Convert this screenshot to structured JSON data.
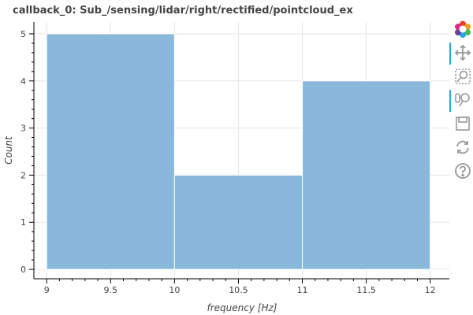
{
  "chart_data": {
    "type": "histogram",
    "title": "callback_0: Sub_/sensing/lidar/right/rectified/pointcloud_ex",
    "xlabel": "frequency [Hz]",
    "ylabel": "Count",
    "bins": [
      {
        "x0": 9,
        "x1": 10,
        "count": 5
      },
      {
        "x0": 10,
        "x1": 11,
        "count": 2
      },
      {
        "x0": 11,
        "x1": 12,
        "count": 4
      }
    ],
    "x_ticks": [
      "9",
      "9.5",
      "10",
      "10.5",
      "11",
      "11.5",
      "12"
    ],
    "y_ticks": [
      "0",
      "1",
      "2",
      "3",
      "4",
      "5"
    ],
    "xlim": [
      8.9,
      12.15
    ],
    "ylim": [
      -0.2,
      5.25
    ],
    "grid": true,
    "bar_color": "#8ab8da"
  },
  "toolbar": {
    "tools": [
      "bokeh-logo-icon",
      "pan-icon",
      "box-zoom-icon",
      "wheel-zoom-icon",
      "save-icon",
      "reset-icon",
      "help-icon"
    ],
    "active_color": "#26aae1"
  }
}
